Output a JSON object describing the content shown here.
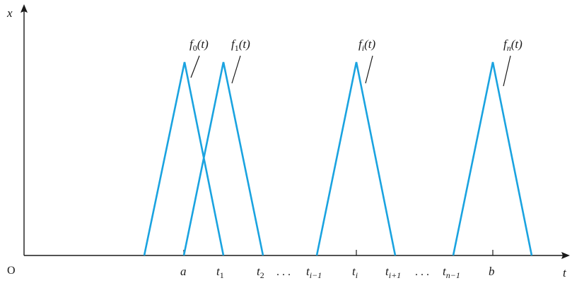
{
  "figure": {
    "axis_colors": {
      "axis": "#1a1a1a",
      "curve": "#1aa3e0"
    },
    "y_axis_label": "x",
    "x_axis_label": "t",
    "origin_label": "O",
    "x_ticks": [
      {
        "text": "a",
        "style": "italic"
      },
      {
        "main": "t",
        "sub": "1"
      },
      {
        "main": "t",
        "sub": "2"
      },
      {
        "text": ". . ."
      },
      {
        "main": "t",
        "sub": "i−1"
      },
      {
        "main": "t",
        "sub": "i"
      },
      {
        "main": "t",
        "sub": "i+1"
      },
      {
        "text": ". . ."
      },
      {
        "main": "t",
        "sub": "n−1"
      },
      {
        "text": "b",
        "style": "italic"
      }
    ],
    "curves": [
      {
        "label_main": "f",
        "label_sub": "0",
        "label_arg": "(t)"
      },
      {
        "label_main": "f",
        "label_sub": "1",
        "label_arg": "(t)"
      },
      {
        "label_main": "f",
        "label_sub": "i",
        "label_arg": "(t)"
      },
      {
        "label_main": "f",
        "label_sub": "n",
        "label_arg": "(t)"
      }
    ]
  }
}
